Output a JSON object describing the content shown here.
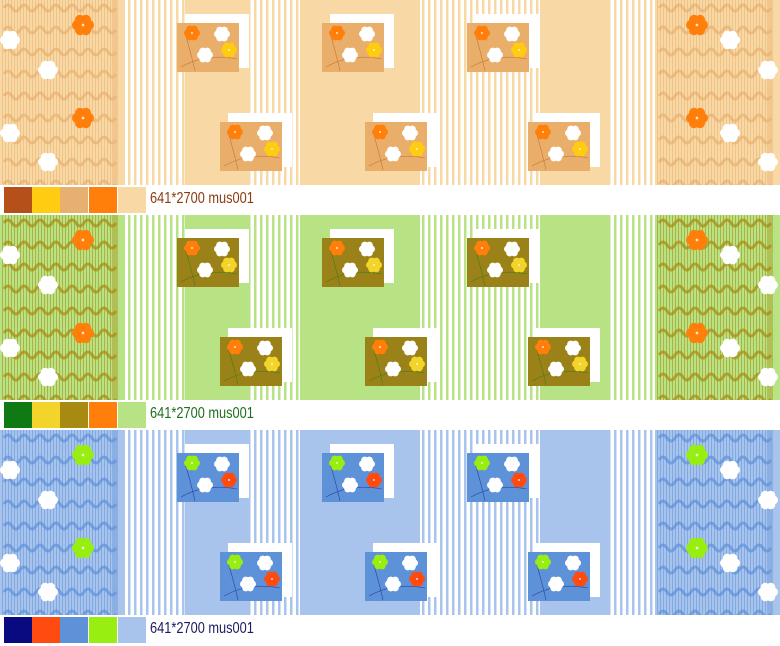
{
  "colorways": [
    {
      "label": "641*2700 mus001",
      "text_color": "#8B3A10",
      "swatches": [
        "#B5501A",
        "#FFCC11",
        "#E8B070",
        "#FF7F0A",
        "#F8D8A4"
      ],
      "palette": {
        "ground": "#F8D8A4",
        "texture": "#E8B070",
        "motif_box": "#E8AE6A",
        "flower_a": "#FF7F0A",
        "flower_b": "#FFFFFF",
        "flower_c": "#FFCC11",
        "stem": "#B5501A",
        "border_flower": "#FF7F0A"
      }
    },
    {
      "label": "641*2700 mus001",
      "text_color": "#1E6E1E",
      "swatches": [
        "#0F7A14",
        "#F2D42A",
        "#A68A12",
        "#FF7F0A",
        "#B8E384"
      ],
      "palette": {
        "ground": "#B8E384",
        "texture": "#A68A12",
        "motif_box": "#9A8218",
        "flower_a": "#FF7F0A",
        "flower_b": "#FFFFFF",
        "flower_c": "#F2D42A",
        "stem": "#0F7A14",
        "border_flower": "#FF7F0A"
      }
    },
    {
      "label": "641*2700 mus001",
      "text_color": "#1A1A60",
      "swatches": [
        "#0A0A80",
        "#FF4A10",
        "#5E92D8",
        "#99EE11",
        "#A8C4EC"
      ],
      "palette": {
        "ground": "#A8C4EC",
        "texture": "#5E92D8",
        "motif_box": "#5E92D8",
        "flower_a": "#99EE11",
        "flower_b": "#FFFFFF",
        "flower_c": "#FF4A10",
        "stem": "#0A0A80",
        "border_flower": "#99EE11"
      }
    }
  ]
}
